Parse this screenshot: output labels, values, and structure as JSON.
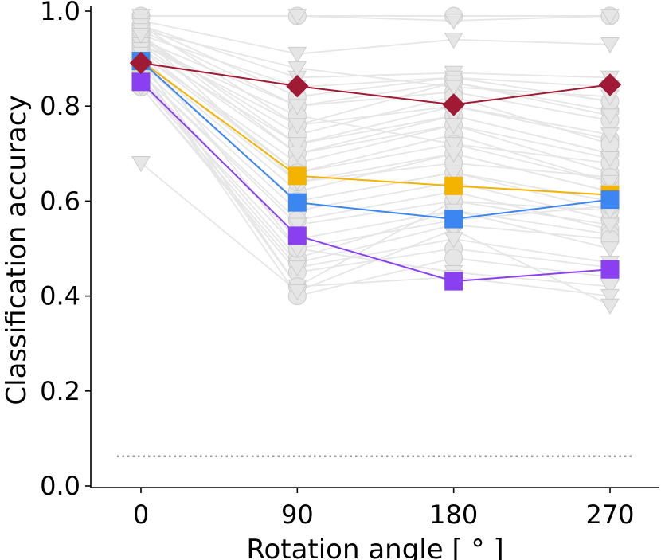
{
  "chart_data": {
    "type": "line",
    "xlabel": "Rotation angle [$^\\circ$]",
    "xlabel_display": "Rotation angle [ ° ]",
    "ylabel": "Classification accuracy",
    "x": [
      0,
      90,
      180,
      270
    ],
    "x_tick_labels": [
      "0",
      "90",
      "180",
      "270"
    ],
    "ylim": [
      0.0,
      1.0
    ],
    "y_ticks": [
      0.0,
      0.2,
      0.4,
      0.6,
      0.8,
      1.0
    ],
    "y_tick_labels": [
      "0.0",
      "0.2",
      "0.4",
      "0.6",
      "0.8",
      "1.0"
    ],
    "grid": false,
    "chance_level": 0.0625,
    "background_series": [
      {
        "marker": "circle",
        "values": [
          0.97,
          0.76,
          0.85,
          0.79
        ]
      },
      {
        "marker": "circle",
        "values": [
          0.95,
          0.72,
          0.8,
          0.73
        ]
      },
      {
        "marker": "circle",
        "values": [
          0.93,
          0.7,
          0.78,
          0.7
        ]
      },
      {
        "marker": "circle",
        "values": [
          0.96,
          0.8,
          0.83,
          0.77
        ]
      },
      {
        "marker": "circle",
        "values": [
          0.91,
          0.68,
          0.76,
          0.66
        ]
      },
      {
        "marker": "circle",
        "values": [
          0.92,
          0.66,
          0.74,
          0.64
        ]
      },
      {
        "marker": "circle",
        "values": [
          0.94,
          0.74,
          0.82,
          0.72
        ]
      },
      {
        "marker": "circle",
        "values": [
          0.9,
          0.62,
          0.7,
          0.62
        ]
      },
      {
        "marker": "circle",
        "values": [
          0.89,
          0.6,
          0.66,
          0.6
        ]
      },
      {
        "marker": "circle",
        "values": [
          0.93,
          0.78,
          0.72,
          0.68
        ]
      },
      {
        "marker": "circle",
        "values": [
          0.88,
          0.58,
          0.64,
          0.56
        ]
      },
      {
        "marker": "circle",
        "values": [
          0.87,
          0.56,
          0.62,
          0.54
        ]
      },
      {
        "marker": "circle",
        "values": [
          0.86,
          0.48,
          0.58,
          0.53
        ]
      },
      {
        "marker": "circle",
        "values": [
          0.85,
          0.47,
          0.55,
          0.52
        ]
      },
      {
        "marker": "circle",
        "values": [
          0.84,
          0.45,
          0.5,
          0.46
        ]
      },
      {
        "marker": "circle",
        "values": [
          0.9,
          0.42,
          0.6,
          0.58
        ]
      },
      {
        "marker": "circle",
        "values": [
          0.88,
          0.4,
          0.48,
          0.44
        ]
      },
      {
        "marker": "circle",
        "values": [
          0.95,
          0.64,
          0.68,
          0.65
        ]
      },
      {
        "marker": "circle",
        "values": [
          0.97,
          0.82,
          0.86,
          0.81
        ]
      },
      {
        "marker": "circle",
        "values": [
          0.92,
          0.5,
          0.56,
          0.59
        ]
      },
      {
        "marker": "circle",
        "values": [
          0.99,
          0.99,
          0.99,
          0.99
        ]
      },
      {
        "marker": "triangle",
        "values": [
          0.99,
          0.99,
          0.98,
          0.99
        ]
      },
      {
        "marker": "triangle",
        "values": [
          0.98,
          0.91,
          0.94,
          0.93
        ]
      },
      {
        "marker": "triangle",
        "values": [
          0.97,
          0.86,
          0.87,
          0.86
        ]
      },
      {
        "marker": "triangle",
        "values": [
          0.95,
          0.84,
          0.86,
          0.84
        ]
      },
      {
        "marker": "triangle",
        "values": [
          0.94,
          0.8,
          0.85,
          0.78
        ]
      },
      {
        "marker": "triangle",
        "values": [
          0.96,
          0.88,
          0.84,
          0.82
        ]
      },
      {
        "marker": "triangle",
        "values": [
          0.93,
          0.76,
          0.8,
          0.74
        ]
      },
      {
        "marker": "triangle",
        "values": [
          0.92,
          0.72,
          0.78,
          0.7
        ]
      },
      {
        "marker": "triangle",
        "values": [
          0.95,
          0.7,
          0.76,
          0.69
        ]
      },
      {
        "marker": "triangle",
        "values": [
          0.91,
          0.66,
          0.72,
          0.64
        ]
      },
      {
        "marker": "triangle",
        "values": [
          0.9,
          0.64,
          0.7,
          0.62
        ]
      },
      {
        "marker": "triangle",
        "values": [
          0.89,
          0.6,
          0.66,
          0.58
        ]
      },
      {
        "marker": "triangle",
        "values": [
          0.87,
          0.55,
          0.6,
          0.55
        ]
      },
      {
        "marker": "triangle",
        "values": [
          0.86,
          0.52,
          0.58,
          0.5
        ]
      },
      {
        "marker": "triangle",
        "values": [
          0.85,
          0.5,
          0.45,
          0.42
        ]
      },
      {
        "marker": "triangle",
        "values": [
          0.88,
          0.42,
          0.44,
          0.4
        ]
      },
      {
        "marker": "triangle",
        "values": [
          0.68,
          0.41,
          0.54,
          0.38
        ]
      },
      {
        "marker": "triangle",
        "values": [
          0.84,
          0.46,
          0.52,
          0.47
        ]
      }
    ],
    "series": [
      {
        "color": "#f5b301",
        "marker": "square",
        "values": [
          0.895,
          0.653,
          0.632,
          0.613
        ]
      },
      {
        "color": "#3b86f0",
        "marker": "square",
        "values": [
          0.895,
          0.597,
          0.562,
          0.603
        ]
      },
      {
        "color": "#8a3ff0",
        "marker": "square",
        "values": [
          0.851,
          0.527,
          0.431,
          0.456
        ]
      },
      {
        "color": "#a01a35",
        "marker": "diamond",
        "values": [
          0.891,
          0.842,
          0.803,
          0.845
        ]
      }
    ],
    "colors": {
      "background_line": "#e6e6e6",
      "background_marker_fill": "#e6e6e6",
      "background_marker_edge": "#cccccc",
      "chance_line": "#999999"
    }
  }
}
